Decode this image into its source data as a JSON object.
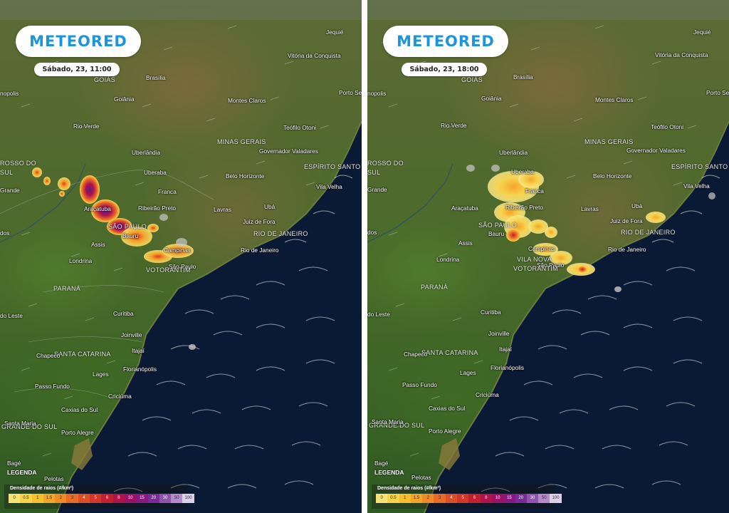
{
  "brand": {
    "logo_text": "METEORED"
  },
  "panels": [
    {
      "id": "left",
      "timestamp": "Sábado, 23, 11:00"
    },
    {
      "id": "right",
      "timestamp": "Sábado, 23, 18:00"
    }
  ],
  "regions": [
    "GOIÁS",
    "MINAS GERAIS",
    "ESPÍRITO SANTO",
    "SÃO PAULO",
    "RIO DE JANEIRO",
    "PARANÁ",
    "SANTA CATARINA",
    "GRANDE DO SUL",
    "ROSSO DO",
    "SUL"
  ],
  "cities": [
    "Jequié",
    "Vitória da Conquista",
    "Brasília",
    "Porto Seguro",
    "nopolis",
    "Goiânia",
    "Montes Claros",
    "Rio Verde",
    "Teófilo Otoni",
    "Uberlândia",
    "Governador Valadares",
    "Uberaba",
    "Belo Horizonte",
    "Grande",
    "Franca",
    "Vila Velha",
    "Araçatuba",
    "Ribeirão Preto",
    "Lavras",
    "Ubá",
    "dos",
    "Juiz de Fora",
    "Bauru",
    "Assis",
    "Campinas",
    "Rio de Janeiro",
    "Londrina",
    "São Paulo",
    "VOTORANTIM",
    "do Leste",
    "Curitiba",
    "Joinville",
    "Chapecó",
    "Itajaí",
    "Lages",
    "Florianópolis",
    "Passo Fundo",
    "Criciúma",
    "Caxias do Sul",
    "Santa Maria",
    "Porto Alegre",
    "Bagé",
    "Pelotas",
    "VILA NOVA"
  ],
  "legend": {
    "title": "LEGENDA",
    "subtitle": "Densidade de raios (#/km²)",
    "levels": [
      "0",
      "0.5",
      "1",
      "1.5",
      "2",
      "3",
      "4",
      "5",
      "6",
      "8",
      "10",
      "15",
      "20",
      "30",
      "50",
      "100"
    ],
    "colors": [
      "#f5e27a",
      "#f7d34d",
      "#f6bf2f",
      "#f3a52b",
      "#ef8a2a",
      "#e86a26",
      "#de4e26",
      "#d13628",
      "#c02030",
      "#b0124c",
      "#9a1266",
      "#861a80",
      "#7a2c96",
      "#8e55ad",
      "#b48ac8",
      "#ded0e6"
    ]
  },
  "colors": {
    "ocean": "#0b1a34",
    "land": "#4e6a2c",
    "logo_blue": "#1e95d6"
  }
}
